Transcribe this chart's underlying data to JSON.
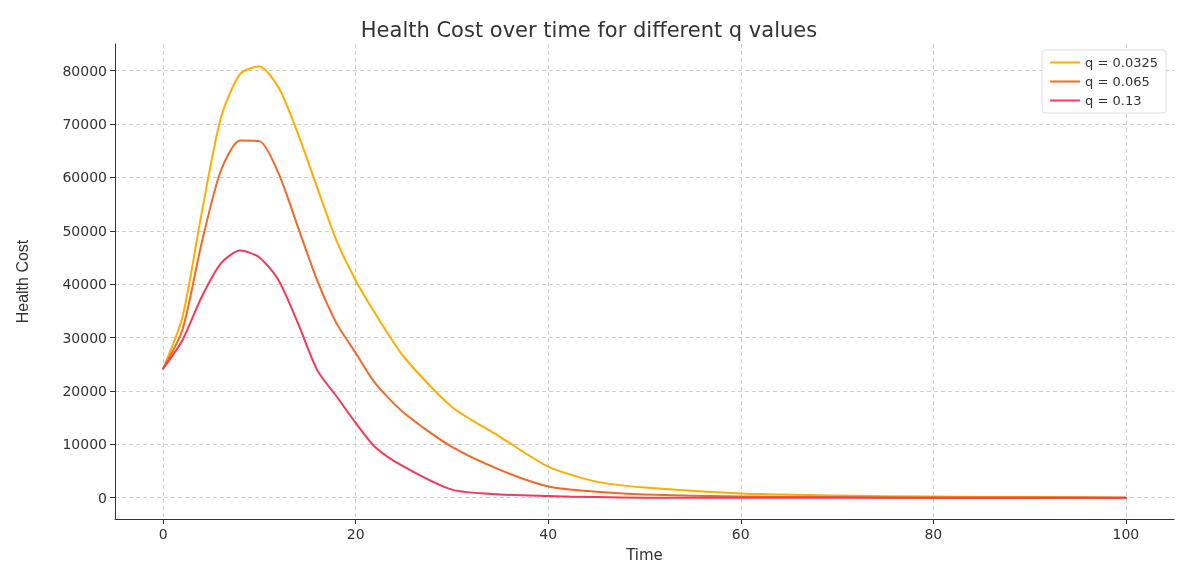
{
  "chart_data": {
    "type": "line",
    "title": "Health Cost over time for different q values",
    "xlabel": "Time",
    "ylabel": "Health Cost",
    "x": [
      0,
      2,
      4,
      6,
      8,
      10,
      12,
      14,
      16,
      18,
      20,
      22,
      25,
      30,
      35,
      40,
      45,
      50,
      60,
      70,
      80,
      90,
      100
    ],
    "series": [
      {
        "name": "q = 0.0325",
        "color": "#ffae00",
        "values": [
          24200,
          33800,
          53300,
          71200,
          79400,
          80800,
          76800,
          68200,
          58100,
          48200,
          40700,
          34600,
          26400,
          17000,
          11400,
          5800,
          3000,
          1900,
          800,
          400,
          200,
          100,
          0
        ]
      },
      {
        "name": "q = 0.065",
        "color": "#f0692a",
        "values": [
          24200,
          31400,
          47700,
          61300,
          66900,
          66800,
          60700,
          50700,
          40700,
          32700,
          27100,
          21500,
          15900,
          9500,
          5200,
          2100,
          1100,
          600,
          200,
          100,
          0,
          0,
          0
        ]
      },
      {
        "name": "q = 0.13",
        "color": "#f33a5a",
        "values": [
          24200,
          29500,
          37600,
          43900,
          46300,
          45000,
          40700,
          32700,
          23900,
          19000,
          14000,
          9500,
          5800,
          1500,
          600,
          300,
          100,
          0,
          0,
          0,
          0,
          0,
          0
        ]
      }
    ],
    "xlim": [
      -5,
      105
    ],
    "xticks": [
      0,
      20,
      40,
      60,
      80,
      100
    ],
    "ylim": [
      -4000,
      85000
    ],
    "yticks": [
      0,
      10000,
      20000,
      30000,
      40000,
      50000,
      60000,
      70000,
      80000
    ],
    "grid": true,
    "legend": "top right",
    "marker": "none",
    "line_style": "solid"
  }
}
